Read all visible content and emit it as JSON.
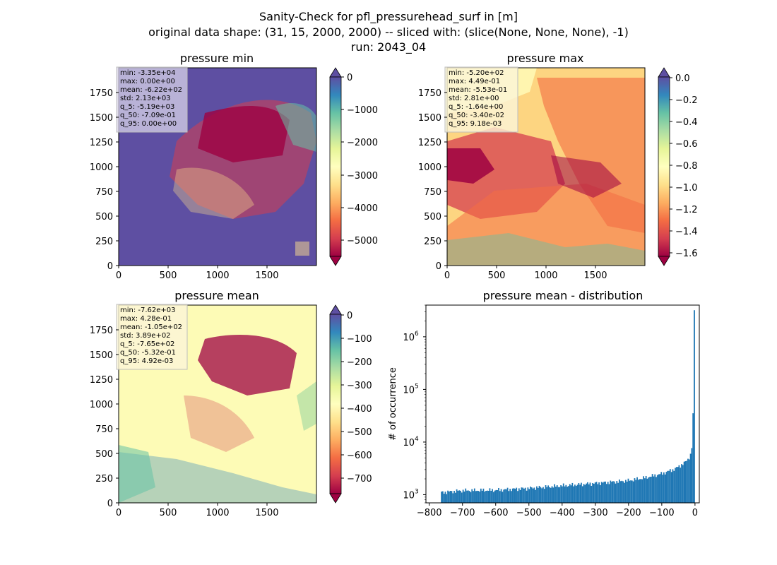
{
  "figure": {
    "title_lines": [
      "Sanity-Check for pfl_pressurehead_surf in [m]",
      "original data shape: (31, 15, 2000, 2000) -- sliced with: (slice(None, None, None), -1)",
      "run: 2043_04"
    ]
  },
  "chart_data": [
    {
      "type": "heatmap",
      "title": "pressure min",
      "colormap": "Spectral",
      "xlim": [
        0,
        2000
      ],
      "ylim": [
        0,
        2000
      ],
      "xticks": [
        0,
        500,
        1000,
        1500
      ],
      "yticks": [
        0,
        250,
        500,
        750,
        1000,
        1250,
        1500,
        1750
      ],
      "colorbar": {
        "range": [
          -5500,
          0
        ],
        "ticks": [
          0,
          -1000,
          -2000,
          -3000,
          -4000,
          -5000
        ],
        "labels": [
          "0",
          "−1000",
          "−2000",
          "−3000",
          "−4000",
          "−5000"
        ],
        "extend": "both"
      },
      "stats": [
        "min: -3.35e+04",
        "max: 0.00e+00",
        "mean: -6.22e+02",
        "std: 2.13e+03",
        "q_5: -5.19e+03",
        "q_50: -7.09e-01",
        "q_95: 0.00e+00"
      ]
    },
    {
      "type": "heatmap",
      "title": "pressure max",
      "colormap": "Spectral",
      "xlim": [
        0,
        2000
      ],
      "ylim": [
        0,
        2000
      ],
      "xticks": [
        0,
        500,
        1000,
        1500
      ],
      "yticks": [
        0,
        250,
        500,
        750,
        1000,
        1250,
        1500,
        1750
      ],
      "colorbar": {
        "range": [
          -1.64,
          0
        ],
        "ticks": [
          0,
          -0.2,
          -0.4,
          -0.6,
          -0.8,
          -1.0,
          -1.2,
          -1.4,
          -1.6
        ],
        "labels": [
          "0.0",
          "−0.2",
          "−0.4",
          "−0.6",
          "−0.8",
          "−1.0",
          "−1.2",
          "−1.4",
          "−1.6"
        ],
        "extend": "both"
      },
      "stats": [
        "min: -5.20e+02",
        "max: 4.49e-01",
        "mean: -5.53e-01",
        "std: 2.81e+00",
        "q_5: -1.64e+00",
        "q_50: -3.40e-02",
        "q_95: 9.18e-03"
      ]
    },
    {
      "type": "heatmap",
      "title": "pressure mean",
      "colormap": "Spectral",
      "xlim": [
        0,
        2000
      ],
      "ylim": [
        0,
        2000
      ],
      "xticks": [
        0,
        500,
        1000,
        1500
      ],
      "yticks": [
        0,
        250,
        500,
        750,
        1000,
        1250,
        1500,
        1750
      ],
      "colorbar": {
        "range": [
          -765,
          0
        ],
        "ticks": [
          0,
          -100,
          -200,
          -300,
          -400,
          -500,
          -600,
          -700
        ],
        "labels": [
          "0",
          "−100",
          "−200",
          "−300",
          "−400",
          "−500",
          "−600",
          "−700"
        ],
        "extend": "both"
      },
      "stats": [
        "min: -7.62e+03",
        "max: 4.28e-01",
        "mean: -1.05e+02",
        "std: 3.89e+02",
        "q_5: -7.65e+02",
        "q_50: -5.32e-01",
        "q_95: 4.92e-03"
      ]
    },
    {
      "type": "bar",
      "subtype": "histogram",
      "title": "pressure mean - distribution",
      "ylabel": "# of occurrence",
      "xlabel": "",
      "yscale": "log",
      "color": "#1f77b4",
      "xlim": [
        -810,
        13
      ],
      "ylim": [
        700,
        4000000
      ],
      "xticks": [
        -800,
        -700,
        -600,
        -500,
        -400,
        -300,
        -200,
        -100,
        0
      ],
      "xtick_labels": [
        "−800",
        "−700",
        "−600",
        "−500",
        "−400",
        "−300",
        "−200",
        "−100",
        "0"
      ],
      "yticks": [
        1000,
        10000,
        100000,
        1000000
      ],
      "ytick_labels": [
        [
          "10",
          "3"
        ],
        [
          "10",
          "4"
        ],
        [
          "10",
          "5"
        ],
        [
          "10",
          "6"
        ]
      ],
      "bin_range": [
        -765,
        0
      ],
      "bins": 200,
      "control_points": [
        [
          -765,
          1100
        ],
        [
          -700,
          1200
        ],
        [
          -600,
          1220
        ],
        [
          -500,
          1330
        ],
        [
          -400,
          1480
        ],
        [
          -300,
          1650
        ],
        [
          -200,
          1850
        ],
        [
          -150,
          2100
        ],
        [
          -100,
          2500
        ],
        [
          -60,
          3100
        ],
        [
          -30,
          4100
        ],
        [
          -20,
          4800
        ],
        [
          -12,
          6000
        ],
        [
          -8,
          9000
        ],
        [
          -5,
          55000
        ],
        [
          -2,
          3200000
        ]
      ]
    }
  ]
}
